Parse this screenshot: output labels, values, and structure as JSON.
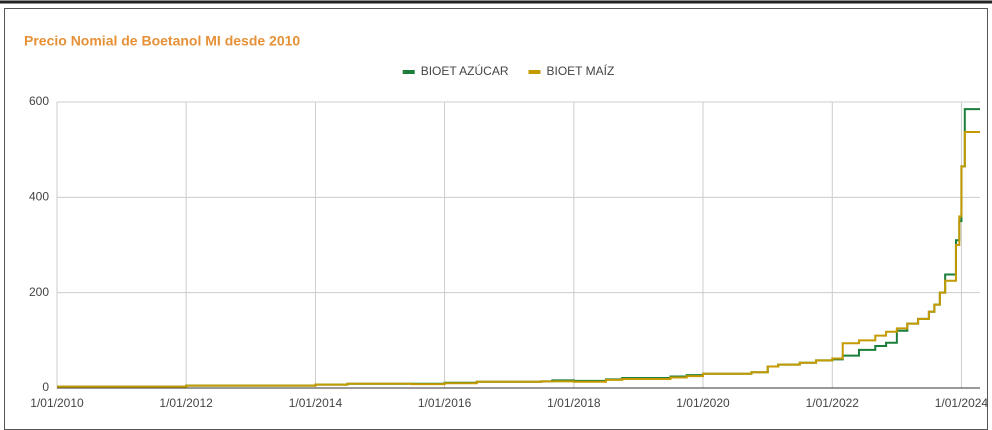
{
  "chart_data": {
    "type": "step-line",
    "title": "Precio Nomial de Boetanol MI desde 2010",
    "x": [
      "2010-01-01",
      "2012-01-01",
      "2014-01-01",
      "2014-07-01",
      "2015-07-01",
      "2016-01-01",
      "2016-07-01",
      "2017-07-01",
      "2017-09-01",
      "2018-01-01",
      "2018-07-01",
      "2018-10-01",
      "2019-07-01",
      "2019-10-01",
      "2020-01-01",
      "2020-10-01",
      "2021-01-01",
      "2021-03-01",
      "2021-07-01",
      "2021-10-01",
      "2022-01-01",
      "2022-03-01",
      "2022-06-01",
      "2022-09-01",
      "2022-11-01",
      "2023-01-01",
      "2023-03-01",
      "2023-05-01",
      "2023-07-01",
      "2023-08-01",
      "2023-09-01",
      "2023-10-01",
      "2023-12-01",
      "2023-12-20",
      "2024-01-01",
      "2024-01-20"
    ],
    "series": [
      {
        "name": "BIOET AZÚCAR",
        "color": "#1b7f3b",
        "values": [
          3,
          5,
          7,
          9,
          9,
          11,
          13,
          14,
          16,
          15,
          18,
          21,
          24,
          27,
          30,
          33,
          45,
          49,
          53,
          58,
          60,
          68,
          80,
          88,
          95,
          120,
          135,
          145,
          160,
          175,
          200,
          238,
          310,
          350,
          465,
          585
        ]
      },
      {
        "name": "BIOET MAÍZ",
        "color": "#c49a00",
        "values": [
          3,
          5,
          7,
          9,
          8,
          10,
          13,
          14,
          14,
          13,
          17,
          19,
          22,
          25,
          30,
          33,
          45,
          49,
          53,
          58,
          62,
          94,
          100,
          110,
          118,
          125,
          135,
          145,
          160,
          175,
          200,
          225,
          300,
          360,
          465,
          537
        ]
      }
    ],
    "xlim": [
      "2010-01-01",
      "2024-04-15"
    ],
    "xticks": [
      {
        "value": "2010-01-01",
        "label": "1/01/2010"
      },
      {
        "value": "2012-01-01",
        "label": "1/01/2012"
      },
      {
        "value": "2014-01-01",
        "label": "1/01/2014"
      },
      {
        "value": "2016-01-01",
        "label": "1/01/2016"
      },
      {
        "value": "2018-01-01",
        "label": "1/01/2018"
      },
      {
        "value": "2020-01-01",
        "label": "1/01/2020"
      },
      {
        "value": "2022-01-01",
        "label": "1/01/2022"
      },
      {
        "value": "2024-01-01",
        "label": "1/01/2024"
      }
    ],
    "ylim": [
      0,
      600
    ],
    "yticks": [
      0,
      200,
      400,
      600
    ],
    "grid": true,
    "legend": "top"
  }
}
